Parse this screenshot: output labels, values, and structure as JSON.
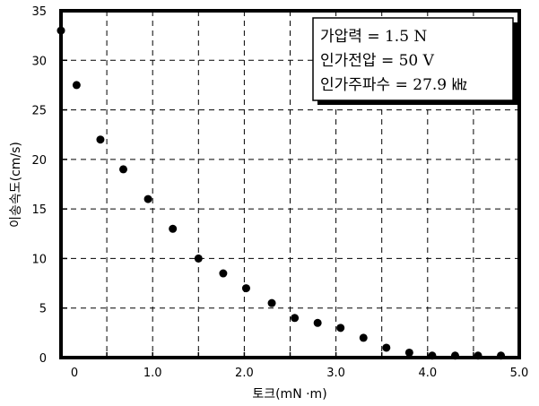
{
  "chart_data": {
    "type": "scatter",
    "xlabel": "토크(mN ·m)",
    "ylabel": "이송속도(cm/s)",
    "xlim": [
      0,
      5
    ],
    "ylim": [
      0,
      35
    ],
    "x_ticks": [
      "0",
      "1.0",
      "2.0",
      "3.0",
      "4.0",
      "5.0"
    ],
    "y_ticks": [
      "0",
      "5",
      "10",
      "15",
      "20",
      "25",
      "30",
      "35"
    ],
    "grid": true,
    "annotation": [
      "가압력 = 1.5 N",
      "인가전압 = 50 V",
      "인가주파수  = 27.9 ㎑"
    ],
    "annotation_position": "top-right",
    "series": [
      {
        "points": [
          [
            0,
            33
          ],
          [
            0.17,
            27.5
          ],
          [
            0.43,
            22
          ],
          [
            0.68,
            19
          ],
          [
            0.95,
            16
          ],
          [
            1.22,
            13
          ],
          [
            1.5,
            10
          ],
          [
            1.77,
            8.5
          ],
          [
            2.02,
            7
          ],
          [
            2.3,
            5.5
          ],
          [
            2.55,
            4
          ],
          [
            2.8,
            3.5
          ],
          [
            3.05,
            3
          ],
          [
            3.3,
            2
          ],
          [
            3.55,
            1
          ],
          [
            3.8,
            0.5
          ],
          [
            4.05,
            0.2
          ],
          [
            4.3,
            0.2
          ],
          [
            4.55,
            0.2
          ],
          [
            4.8,
            0.2
          ]
        ]
      }
    ]
  }
}
